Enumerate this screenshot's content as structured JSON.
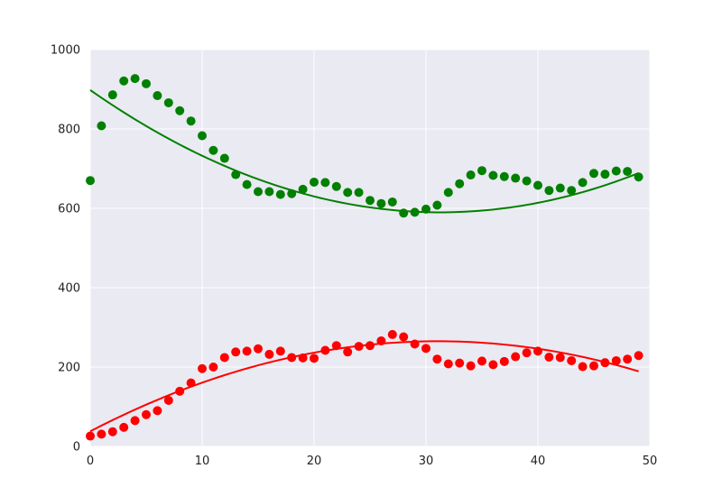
{
  "chart_data": {
    "type": "scatter",
    "title": "",
    "xlabel": "",
    "ylabel": "",
    "xlim": [
      0,
      50
    ],
    "ylim": [
      0,
      1000
    ],
    "grid": true,
    "x_ticks": [
      0,
      10,
      20,
      30,
      40,
      50
    ],
    "y_ticks": [
      0,
      200,
      400,
      600,
      800,
      1000
    ],
    "background": "#EAEAF2",
    "series": [
      {
        "color": "#008000",
        "points_y": [
          670,
          808,
          886,
          921,
          927,
          914,
          884,
          866,
          846,
          820,
          783,
          746,
          726,
          685,
          660,
          642,
          642,
          635,
          637,
          648,
          666,
          665,
          655,
          640,
          640,
          620,
          612,
          616,
          588,
          590,
          598,
          608,
          640,
          662,
          684,
          695,
          683,
          680,
          676,
          669,
          658,
          645,
          651,
          645,
          665,
          688,
          686,
          694,
          693,
          679
        ],
        "fit": {
          "a": 0.3149,
          "b": -19.7,
          "c": 898
        }
      },
      {
        "color": "#FF0000",
        "points_y": [
          26,
          31,
          37,
          48,
          65,
          80,
          90,
          116,
          139,
          160,
          196,
          200,
          224,
          238,
          240,
          246,
          232,
          240,
          224,
          223,
          222,
          242,
          254,
          238,
          252,
          254,
          266,
          282,
          276,
          258,
          247,
          220,
          208,
          210,
          203,
          215,
          206,
          214,
          226,
          236,
          240,
          225,
          224,
          216,
          201,
          203,
          211,
          216,
          220,
          229
        ],
        "fit": {
          "a": -0.2354,
          "b": 14.62,
          "c": 38
        }
      }
    ]
  }
}
